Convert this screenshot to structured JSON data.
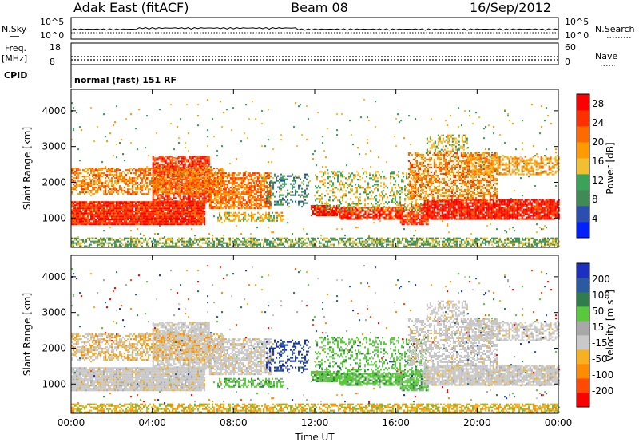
{
  "header": {
    "radar": "Adak East (fitACF)",
    "beam": "Beam 08",
    "date": "16/Sep/2012"
  },
  "summary": {
    "nsky_label": "N.Sky",
    "nsky_ticks": [
      "10^5",
      "10^0"
    ],
    "nsearch_label": "N.Search",
    "nsearch_ticks": [
      "10^5",
      "10^0"
    ],
    "freq_label": "Freq.",
    "freq_unit": "[MHz]",
    "freq_ticks": [
      "18",
      "8"
    ],
    "nave_label": "Nave",
    "nave_ticks": [
      "60",
      "0"
    ],
    "cpid_label": "CPID",
    "cpid_value": "normal (fast) 151 RF"
  },
  "colors": {
    "power": [
      "#0020ff",
      "#2a4fb0",
      "#3f8a55",
      "#3aa35a",
      "#f0c030",
      "#ff9a00",
      "#ff6a00",
      "#ff3000",
      "#ff0000"
    ],
    "velocity": [
      "#1b2fc0",
      "#2a5aa0",
      "#2e7d4a",
      "#59c83a",
      "#a8a8a8",
      "#c9c9c9",
      "#f6b020",
      "#ff8c00",
      "#ff4a00",
      "#ff0000"
    ]
  },
  "chart_data": [
    {
      "type": "heatmap",
      "name": "power",
      "xlabel": "",
      "ylabel": "Slant Range [km]",
      "x_ticks": [
        "00:00",
        "04:00",
        "08:00",
        "12:00",
        "16:00",
        "20:00",
        "00:00"
      ],
      "y_ticks": [
        1000,
        2000,
        3000,
        4000
      ],
      "xlim_hours": [
        0,
        24
      ],
      "ylim_km": [
        180,
        4600
      ],
      "colorbar": {
        "label": "Power [dB]",
        "ticks": [
          4,
          8,
          12,
          16,
          20,
          24,
          28
        ],
        "range": [
          0,
          30
        ]
      }
    },
    {
      "type": "heatmap",
      "name": "velocity",
      "xlabel": "Time UT",
      "ylabel": "Slant Range [km]",
      "x_ticks": [
        "00:00",
        "04:00",
        "08:00",
        "12:00",
        "16:00",
        "20:00",
        "00:00"
      ],
      "y_ticks": [
        1000,
        2000,
        3000,
        4000
      ],
      "xlim_hours": [
        0,
        24
      ],
      "ylim_km": [
        180,
        4600
      ],
      "colorbar": {
        "label": "Velocity [m s",
        "label_sup": "-1",
        "label_end": "]",
        "ticks": [
          "200",
          "100",
          "50",
          "15",
          "-15",
          "-50",
          "-100",
          "-200"
        ]
      }
    }
  ]
}
